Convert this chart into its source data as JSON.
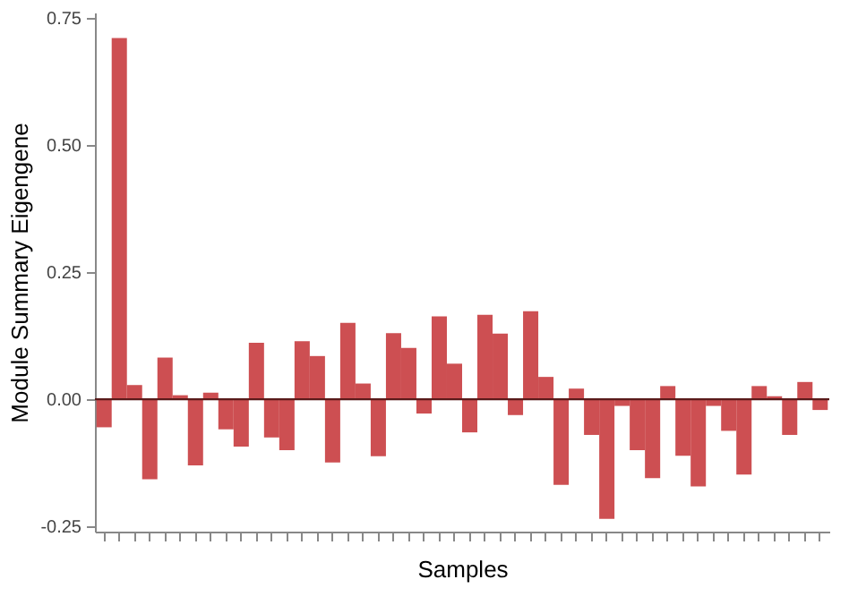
{
  "chart_data": {
    "type": "bar",
    "xlabel": "Samples",
    "ylabel": "Module Summary Eigengene",
    "categories": [
      null,
      null,
      null,
      null,
      null,
      null,
      null,
      null,
      null,
      null,
      null,
      null,
      null,
      null,
      null,
      null,
      null,
      null,
      null,
      null,
      null,
      null,
      null,
      null,
      null,
      null,
      null,
      null,
      null,
      null,
      null,
      null,
      null,
      null,
      null,
      null,
      null,
      null,
      null,
      null,
      null,
      null,
      null,
      null,
      null,
      null,
      null,
      null
    ],
    "values": [
      -0.055,
      0.71,
      0.028,
      -0.157,
      0.082,
      0.008,
      -0.13,
      0.013,
      -0.059,
      -0.093,
      0.111,
      -0.075,
      -0.1,
      0.114,
      0.085,
      -0.124,
      0.15,
      0.031,
      -0.112,
      0.13,
      0.101,
      -0.028,
      0.163,
      0.07,
      -0.065,
      0.166,
      0.129,
      -0.031,
      0.173,
      0.044,
      -0.168,
      0.021,
      -0.07,
      -0.235,
      -0.013,
      -0.1,
      -0.155,
      0.026,
      -0.111,
      -0.171,
      -0.013,
      -0.062,
      -0.148,
      0.026,
      0.006,
      -0.07,
      0.034,
      -0.021
    ],
    "color": "#cd4f52",
    "ylim": [
      -0.26,
      0.76
    ],
    "yticks": [
      {
        "value": -0.25,
        "label": "-0.25"
      },
      {
        "value": 0,
        "label": "0.00"
      },
      {
        "value": 0.25,
        "label": "0.25"
      },
      {
        "value": 0.5,
        "label": "0.50"
      },
      {
        "value": 0.75,
        "label": "0.75"
      }
    ],
    "ref_lines": [
      {
        "axis": "y",
        "value": 0,
        "color": "#5a1a1a"
      }
    ],
    "grid": false
  }
}
